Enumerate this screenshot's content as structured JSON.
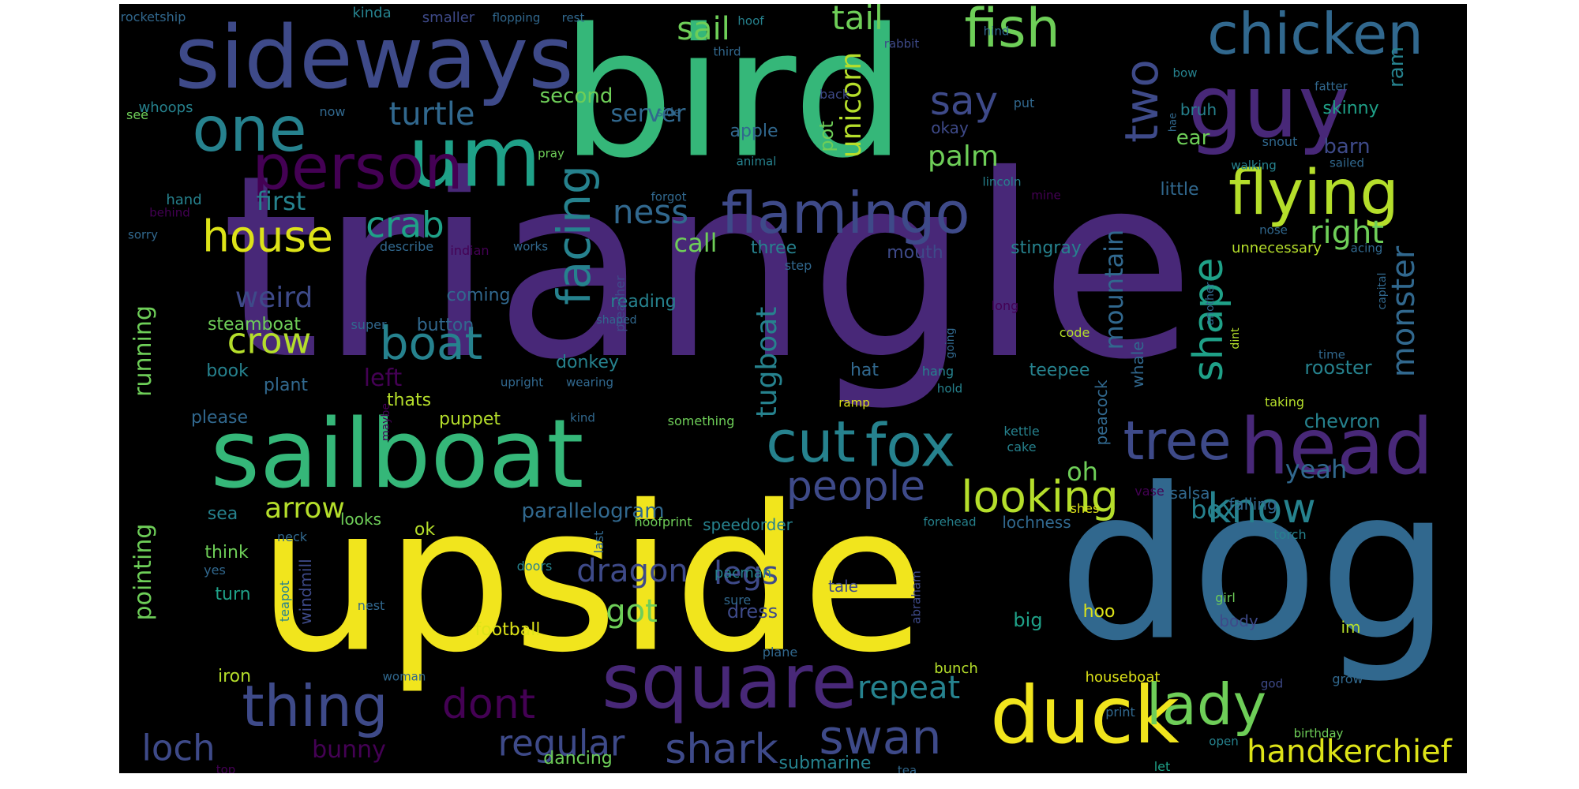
{
  "figure": {
    "background": "#000000",
    "colormap": "viridis"
  },
  "words": [
    {
      "text": "triangle",
      "color": "#482878"
    },
    {
      "text": "upside",
      "color": "#f1e51d"
    },
    {
      "text": "bird",
      "color": "#35b779"
    },
    {
      "text": "dog",
      "color": "#31688e"
    },
    {
      "text": "sideways",
      "color": "#3e4a89"
    },
    {
      "text": "sailboat",
      "color": "#35b779"
    },
    {
      "text": "um",
      "color": "#1fa188"
    },
    {
      "text": "guy",
      "color": "#482878"
    },
    {
      "text": "square",
      "color": "#482878"
    },
    {
      "text": "duck",
      "color": "#f1e51d"
    },
    {
      "text": "head",
      "color": "#482878"
    },
    {
      "text": "person",
      "color": "#440154"
    },
    {
      "text": "one",
      "color": "#26828e"
    },
    {
      "text": "flamingo",
      "color": "#3e4a89"
    },
    {
      "text": "flying",
      "color": "#b5de2b"
    },
    {
      "text": "chicken",
      "color": "#31688e"
    },
    {
      "text": "fish",
      "color": "#6ece58"
    },
    {
      "text": "cut",
      "color": "#26828e"
    },
    {
      "text": "fox",
      "color": "#26828e"
    },
    {
      "text": "tree",
      "color": "#3e4a89"
    },
    {
      "text": "thing",
      "color": "#3e4a89"
    },
    {
      "text": "lady",
      "color": "#6ece58"
    },
    {
      "text": "boat",
      "color": "#26828e"
    },
    {
      "text": "house",
      "color": "#dde318"
    },
    {
      "text": "looking",
      "color": "#b5de2b"
    },
    {
      "text": "people",
      "color": "#3e4a89"
    },
    {
      "text": "know",
      "color": "#26828e"
    },
    {
      "text": "swan",
      "color": "#3e4a89"
    },
    {
      "text": "shark",
      "color": "#3e4a89"
    },
    {
      "text": "dont",
      "color": "#440154"
    },
    {
      "text": "crab",
      "color": "#1fa188"
    },
    {
      "text": "turtle",
      "color": "#31688e"
    },
    {
      "text": "say",
      "color": "#3e4a89"
    },
    {
      "text": "handkerchief",
      "color": "#dde318"
    },
    {
      "text": "regular",
      "color": "#3e4a89"
    },
    {
      "text": "loch",
      "color": "#3e4a89"
    },
    {
      "text": "sail",
      "color": "#6ece58"
    },
    {
      "text": "tail",
      "color": "#6ece58"
    },
    {
      "text": "two",
      "color": "#3e4a89"
    },
    {
      "text": "facing",
      "color": "#26828e"
    },
    {
      "text": "shape",
      "color": "#1fa188"
    },
    {
      "text": "ness",
      "color": "#31688e"
    },
    {
      "text": "crow",
      "color": "#b5de2b"
    },
    {
      "text": "right",
      "color": "#6ece58"
    },
    {
      "text": "monster",
      "color": "#31688e"
    },
    {
      "text": "mountain",
      "color": "#31688e"
    },
    {
      "text": "unicorn",
      "color": "#b5de2b"
    },
    {
      "text": "palm",
      "color": "#6ece58"
    },
    {
      "text": "repeat",
      "color": "#26828e"
    },
    {
      "text": "dragon",
      "color": "#3e4a89"
    },
    {
      "text": "legs",
      "color": "#3e4a89"
    },
    {
      "text": "got",
      "color": "#6ece58"
    },
    {
      "text": "arrow",
      "color": "#b5de2b"
    },
    {
      "text": "weird",
      "color": "#3e4a89"
    },
    {
      "text": "first",
      "color": "#26828e"
    },
    {
      "text": "call",
      "color": "#6ece58"
    },
    {
      "text": "tugboat",
      "color": "#26828e"
    },
    {
      "text": "yeah",
      "color": "#31688e"
    },
    {
      "text": "box",
      "color": "#26828e"
    },
    {
      "text": "oh",
      "color": "#6ece58"
    },
    {
      "text": "bunny",
      "color": "#440154"
    },
    {
      "text": "server",
      "color": "#31688e"
    },
    {
      "text": "left",
      "color": "#440154"
    },
    {
      "text": "running",
      "color": "#6ece58"
    },
    {
      "text": "pointing",
      "color": "#6ece58"
    },
    {
      "text": "ear",
      "color": "#6ece58"
    },
    {
      "text": "barn",
      "color": "#3e4a89"
    },
    {
      "text": "skinny",
      "color": "#1fa188"
    },
    {
      "text": "ram",
      "color": "#26828e"
    },
    {
      "text": "second",
      "color": "#6ece58"
    },
    {
      "text": "parallelogram",
      "color": "#31688e"
    },
    {
      "text": "rooster",
      "color": "#26828e"
    },
    {
      "text": "chevron",
      "color": "#26828e"
    },
    {
      "text": "mouth",
      "color": "#3e4a89"
    },
    {
      "text": "three",
      "color": "#26828e"
    },
    {
      "text": "stingray",
      "color": "#26828e"
    },
    {
      "text": "little",
      "color": "#31688e"
    },
    {
      "text": "bruh",
      "color": "#26828e"
    },
    {
      "text": "apple",
      "color": "#31688e"
    },
    {
      "text": "pot",
      "color": "#6ece58"
    },
    {
      "text": "okay",
      "color": "#3e4a89"
    },
    {
      "text": "steamboat",
      "color": "#6ece58"
    },
    {
      "text": "book",
      "color": "#26828e"
    },
    {
      "text": "plant",
      "color": "#31688e"
    },
    {
      "text": "please",
      "color": "#31688e"
    },
    {
      "text": "puppet",
      "color": "#b5de2b"
    },
    {
      "text": "thats",
      "color": "#b5de2b"
    },
    {
      "text": "coming",
      "color": "#31688e"
    },
    {
      "text": "button",
      "color": "#31688e"
    },
    {
      "text": "reading",
      "color": "#26828e"
    },
    {
      "text": "donkey",
      "color": "#26828e"
    },
    {
      "text": "hat",
      "color": "#31688e"
    },
    {
      "text": "teepee",
      "color": "#26828e"
    },
    {
      "text": "peacock",
      "color": "#31688e"
    },
    {
      "text": "whale",
      "color": "#31688e"
    },
    {
      "text": "dress",
      "color": "#3e4a89"
    },
    {
      "text": "submarine",
      "color": "#26828e"
    },
    {
      "text": "dancing",
      "color": "#6ece58"
    },
    {
      "text": "football",
      "color": "#dde318"
    },
    {
      "text": "speedorder",
      "color": "#26828e"
    },
    {
      "text": "hoofprint",
      "color": "#6ece58"
    },
    {
      "text": "salsa",
      "color": "#31688e"
    },
    {
      "text": "lochness",
      "color": "#31688e"
    },
    {
      "text": "falling",
      "color": "#31688e"
    },
    {
      "text": "big",
      "color": "#1fa188"
    },
    {
      "text": "hoo",
      "color": "#dde318"
    },
    {
      "text": "im",
      "color": "#b5de2b"
    },
    {
      "text": "houseboat",
      "color": "#dde318"
    },
    {
      "text": "ok",
      "color": "#b5de2b"
    },
    {
      "text": "looks",
      "color": "#6ece58"
    },
    {
      "text": "sea",
      "color": "#26828e"
    },
    {
      "text": "think",
      "color": "#6ece58"
    },
    {
      "text": "turn",
      "color": "#1fa188"
    },
    {
      "text": "iron",
      "color": "#b5de2b"
    },
    {
      "text": "windmill",
      "color": "#3e4a89"
    },
    {
      "text": "teapot",
      "color": "#26828e"
    },
    {
      "text": "nest",
      "color": "#31688e"
    },
    {
      "text": "woman",
      "color": "#31688e"
    },
    {
      "text": "pacman",
      "color": "#26828e"
    },
    {
      "text": "sure",
      "color": "#31688e"
    },
    {
      "text": "plane",
      "color": "#31688e"
    },
    {
      "text": "tale",
      "color": "#3e4a89"
    },
    {
      "text": "bunch",
      "color": "#b5de2b"
    },
    {
      "text": "yes",
      "color": "#31688e"
    },
    {
      "text": "doors",
      "color": "#26828e"
    },
    {
      "text": "last",
      "color": "#31688e"
    },
    {
      "text": "neck",
      "color": "#31688e"
    },
    {
      "text": "forehead",
      "color": "#26828e"
    },
    {
      "text": "shes",
      "color": "#dde318"
    },
    {
      "text": "vase",
      "color": "#440154"
    },
    {
      "text": "torch",
      "color": "#26828e"
    },
    {
      "text": "girl",
      "color": "#6ece58"
    },
    {
      "text": "body",
      "color": "#3e4a89"
    },
    {
      "text": "grow",
      "color": "#31688e"
    },
    {
      "text": "god",
      "color": "#3e4a89"
    },
    {
      "text": "print",
      "color": "#31688e"
    },
    {
      "text": "open",
      "color": "#26828e"
    },
    {
      "text": "let",
      "color": "#1fa188"
    },
    {
      "text": "birthday",
      "color": "#6ece58"
    },
    {
      "text": "tea",
      "color": "#31688e"
    },
    {
      "text": "top",
      "color": "#440154"
    },
    {
      "text": "abraham",
      "color": "#3e4a89"
    },
    {
      "text": "rocketship",
      "color": "#31688e"
    },
    {
      "text": "kinda",
      "color": "#26828e"
    },
    {
      "text": "smaller",
      "color": "#3e4a89"
    },
    {
      "text": "flopping",
      "color": "#31688e"
    },
    {
      "text": "rest",
      "color": "#31688e"
    },
    {
      "text": "hoof",
      "color": "#26828e"
    },
    {
      "text": "third",
      "color": "#31688e"
    },
    {
      "text": "rabbit",
      "color": "#3e4a89"
    },
    {
      "text": "hind",
      "color": "#31688e"
    },
    {
      "text": "bow",
      "color": "#26828e"
    },
    {
      "text": "fatter",
      "color": "#31688e"
    },
    {
      "text": "whoops",
      "color": "#26828e"
    },
    {
      "text": "see",
      "color": "#6ece58"
    },
    {
      "text": "now",
      "color": "#31688e"
    },
    {
      "text": "side",
      "color": "#31688e"
    },
    {
      "text": "back",
      "color": "#3e4a89"
    },
    {
      "text": "put",
      "color": "#31688e"
    },
    {
      "text": "hae",
      "color": "#31688e"
    },
    {
      "text": "snout",
      "color": "#31688e"
    },
    {
      "text": "sailed",
      "color": "#31688e"
    },
    {
      "text": "pray",
      "color": "#6ece58"
    },
    {
      "text": "animal",
      "color": "#26828e"
    },
    {
      "text": "lincoln",
      "color": "#26828e"
    },
    {
      "text": "walking",
      "color": "#26828e"
    },
    {
      "text": "mine",
      "color": "#440154"
    },
    {
      "text": "hand",
      "color": "#26828e"
    },
    {
      "text": "forgot",
      "color": "#31688e"
    },
    {
      "text": "behind",
      "color": "#440154"
    },
    {
      "text": "sorry",
      "color": "#31688e"
    },
    {
      "text": "describe",
      "color": "#31688e"
    },
    {
      "text": "indian",
      "color": "#440154"
    },
    {
      "text": "works",
      "color": "#31688e"
    },
    {
      "text": "nose",
      "color": "#31688e"
    },
    {
      "text": "unnecessary",
      "color": "#b5de2b"
    },
    {
      "text": "acing",
      "color": "#31688e"
    },
    {
      "text": "step",
      "color": "#31688e"
    },
    {
      "text": "preacher",
      "color": "#3e4a89"
    },
    {
      "text": "capital",
      "color": "#31688e"
    },
    {
      "text": "another",
      "color": "#31688e"
    },
    {
      "text": "long",
      "color": "#440154"
    },
    {
      "text": "shaped",
      "color": "#31688e"
    },
    {
      "text": "dint",
      "color": "#b5de2b"
    },
    {
      "text": "super",
      "color": "#31688e"
    },
    {
      "text": "going",
      "color": "#31688e"
    },
    {
      "text": "code",
      "color": "#b5de2b"
    },
    {
      "text": "time",
      "color": "#31688e"
    },
    {
      "text": "upright",
      "color": "#31688e"
    },
    {
      "text": "wearing",
      "color": "#31688e"
    },
    {
      "text": "hang",
      "color": "#26828e"
    },
    {
      "text": "hold",
      "color": "#26828e"
    },
    {
      "text": "taking",
      "color": "#b5de2b"
    },
    {
      "text": "maybe",
      "color": "#440154"
    },
    {
      "text": "kind",
      "color": "#31688e"
    },
    {
      "text": "something",
      "color": "#6ece58"
    },
    {
      "text": "ramp",
      "color": "#dde318"
    },
    {
      "text": "kettle",
      "color": "#26828e"
    },
    {
      "text": "cake",
      "color": "#26828e"
    }
  ]
}
